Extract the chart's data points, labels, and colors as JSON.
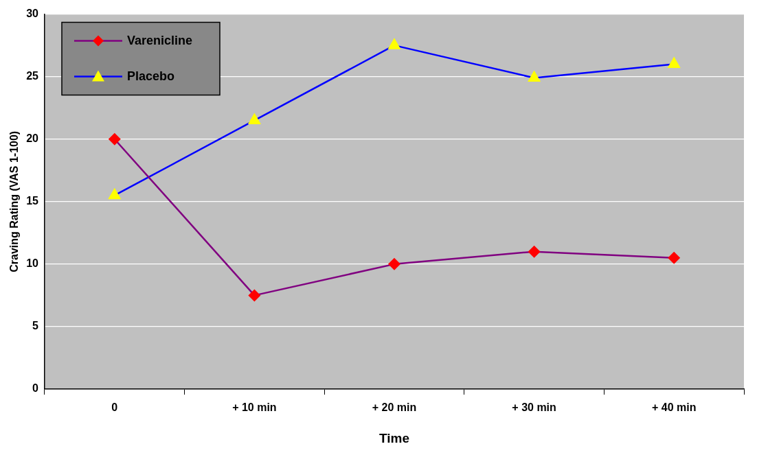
{
  "chart_data": {
    "type": "line",
    "xlabel": "Time",
    "ylabel": "Craving Rating (VAS 1-100)",
    "categories": [
      "0",
      "+ 10 min",
      "+ 20 min",
      "+ 30 min",
      "+ 40 min"
    ],
    "series": [
      {
        "name": "Varenicline",
        "color": "#800080",
        "marker": "diamond",
        "values": [
          20,
          7.5,
          10,
          11,
          10.5
        ]
      },
      {
        "name": "Placebo",
        "color": "#0000ff",
        "marker": "triangle",
        "values": [
          15.5,
          21.5,
          27.5,
          24.9,
          26
        ]
      }
    ],
    "ylim": [
      0,
      30
    ],
    "yticks": [
      0,
      5,
      10,
      15,
      20,
      25,
      30
    ],
    "grid": "y",
    "legend": "top left"
  }
}
